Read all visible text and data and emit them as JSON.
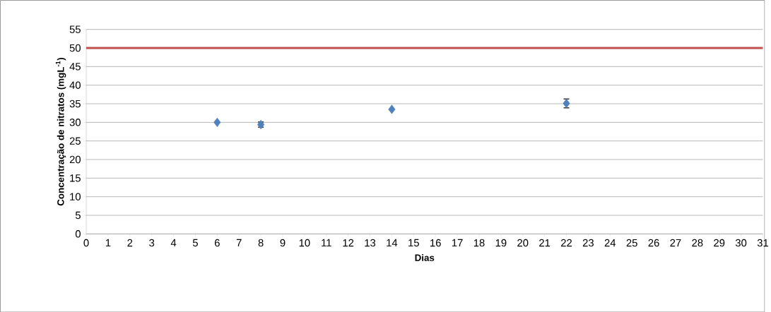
{
  "chart_data": {
    "type": "scatter",
    "xlabel": "Dias",
    "ylabel": "Concentração de nitratos (mgL$^{-1}$)",
    "x": [
      6,
      8,
      14,
      22
    ],
    "values": [
      30.0,
      29.4,
      33.5,
      35.1
    ],
    "errors": [
      null,
      0.7,
      null,
      1.2
    ],
    "color": "#4f81bd",
    "marker": "diamond",
    "xlim": [
      0,
      31
    ],
    "xticks": [
      0,
      1,
      2,
      3,
      4,
      5,
      6,
      7,
      8,
      9,
      10,
      11,
      12,
      13,
      14,
      15,
      16,
      17,
      18,
      19,
      20,
      21,
      22,
      23,
      24,
      25,
      26,
      27,
      28,
      29,
      30,
      31
    ],
    "ylim": [
      0,
      55
    ],
    "yticks": [
      0,
      5,
      10,
      15,
      20,
      25,
      30,
      35,
      40,
      45,
      50,
      55
    ],
    "grid": "y",
    "ref_lines": [
      {
        "axis": "y",
        "value": 50,
        "color": "#c0504d"
      }
    ]
  }
}
